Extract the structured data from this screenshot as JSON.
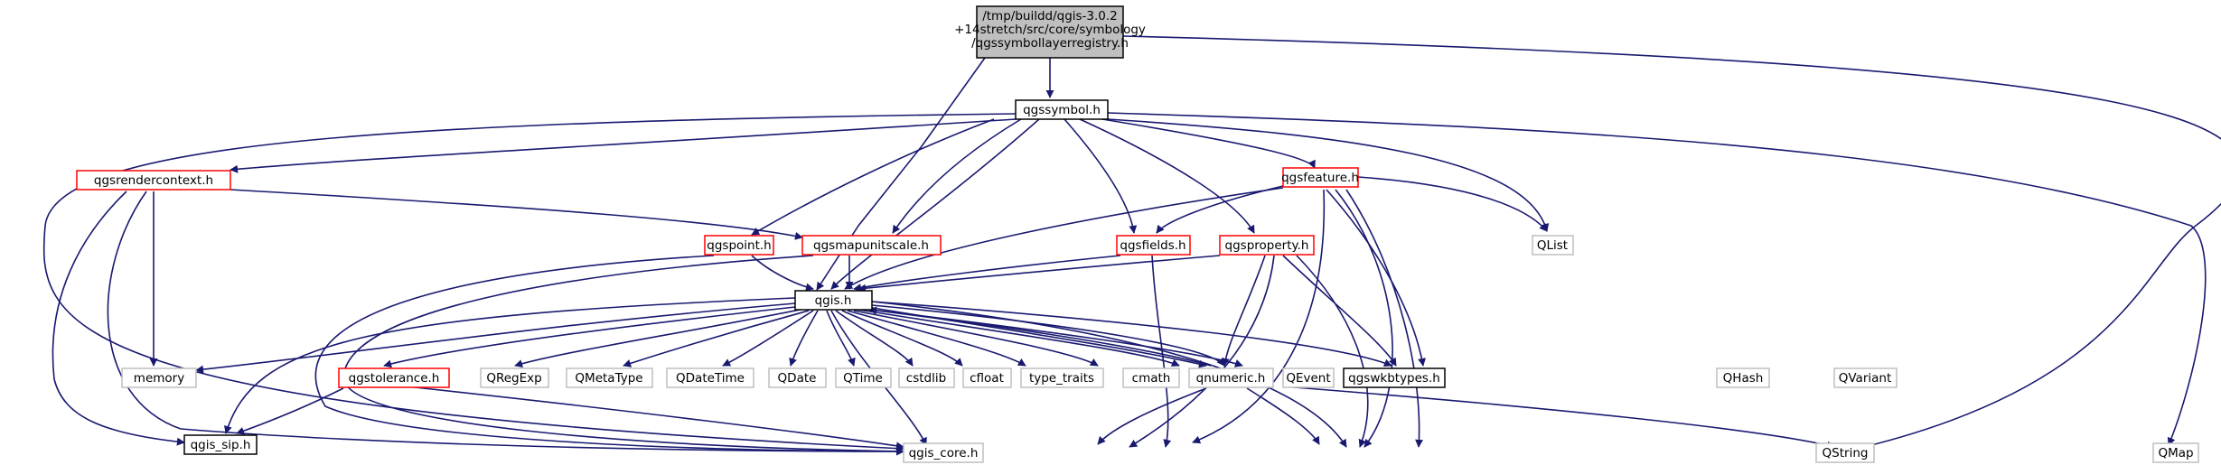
{
  "root": [
    "/tmp/buildd/qgis-3.0.2",
    "+14stretch/src/core/symbology",
    "/qgssymbollayerregistry.h"
  ],
  "nodes": {
    "qgssymbol": "qgssymbol.h",
    "qgsrendercontext": "qgsrendercontext.h",
    "qgsfeature": "qgsfeature.h",
    "qgspoint": "qgspoint.h",
    "qgsmapunitscale": "qgsmapunitscale.h",
    "qgsfields": "qgsfields.h",
    "qgsproperty": "qgsproperty.h",
    "qlist": "QList",
    "qgis": "qgis.h",
    "memory": "memory",
    "qgstolerance": "qgstolerance.h",
    "qregexp": "QRegExp",
    "qmetatype": "QMetaType",
    "qdatetime": "QDateTime",
    "qdate": "QDate",
    "qtime": "QTime",
    "cstdlib": "cstdlib",
    "cfloat": "cfloat",
    "type_traits": "type_traits",
    "cmath": "cmath",
    "qnumeric": "qnumeric.h",
    "qevent": "QEvent",
    "qgswkbtypes": "qgswkbtypes.h",
    "qhash": "QHash",
    "qvariant": "QVariant",
    "qgis_sip": "qgis_sip.h",
    "qgis_core": "qgis_core.h",
    "qstring": "QString",
    "qmap": "QMap"
  },
  "colors": {
    "edge": "#191970",
    "root_fill": "#bfbfbf",
    "border_documented": "#000000",
    "border_undocumented": "#ff0000",
    "border_external": "#bfbfbf"
  }
}
